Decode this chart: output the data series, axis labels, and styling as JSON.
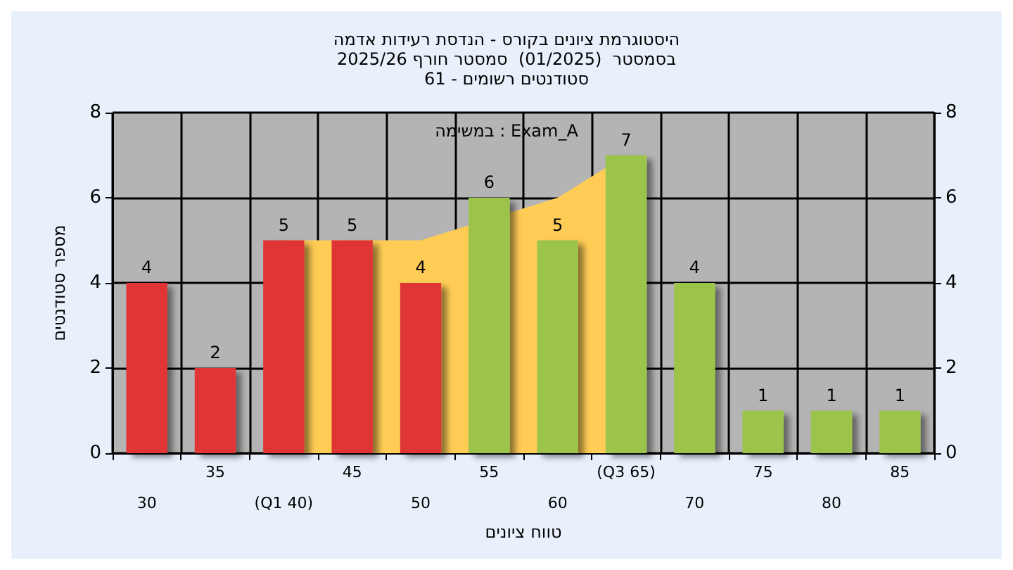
{
  "chart_data": {
    "type": "bar",
    "title": "היסטוגרמת ציונים בקורס - הנדסת רעידות אדמה\nבסמסטר  (01/2025)  סמסטר חורף 2025/26\nסטודנטים רשומים - 61",
    "xlabel": "טווח ציונים",
    "ylabel": "מספר סטודנטים",
    "annotations": [
      "במשימה : Exam_A"
    ],
    "categories": [
      "30",
      "35",
      "(Q1 40)",
      "45",
      "50",
      "55",
      "60",
      "(Q3 65)",
      "70",
      "75",
      "80",
      "85"
    ],
    "series": [
      {
        "type": "area",
        "color": "#ffcc55",
        "values": [
          null,
          null,
          5,
          5,
          5,
          null,
          6,
          7,
          null,
          null,
          null,
          null
        ]
      },
      {
        "value_labels": [
          "4",
          "2",
          "5",
          "5",
          "4",
          "6",
          "5",
          "7",
          "4",
          "1",
          "1",
          "1"
        ],
        "colors": [
          "#e03535",
          "#e03535",
          "#e03535",
          "#e03535",
          "#e03535",
          "#9cc44c",
          "#9cc44c",
          "#9cc44c",
          "#9cc44c",
          "#9cc44c",
          "#9cc44c",
          "#9cc44c"
        ],
        "values": [
          4,
          2,
          5,
          5,
          4,
          6,
          5,
          7,
          4,
          1,
          1,
          1
        ]
      }
    ],
    "ylim": [
      0,
      8
    ],
    "yticks": [
      0,
      2,
      4,
      6,
      8
    ],
    "y2lim": [
      0,
      8
    ],
    "y2ticks": [
      0,
      2,
      4,
      6,
      8
    ],
    "grid": true
  }
}
